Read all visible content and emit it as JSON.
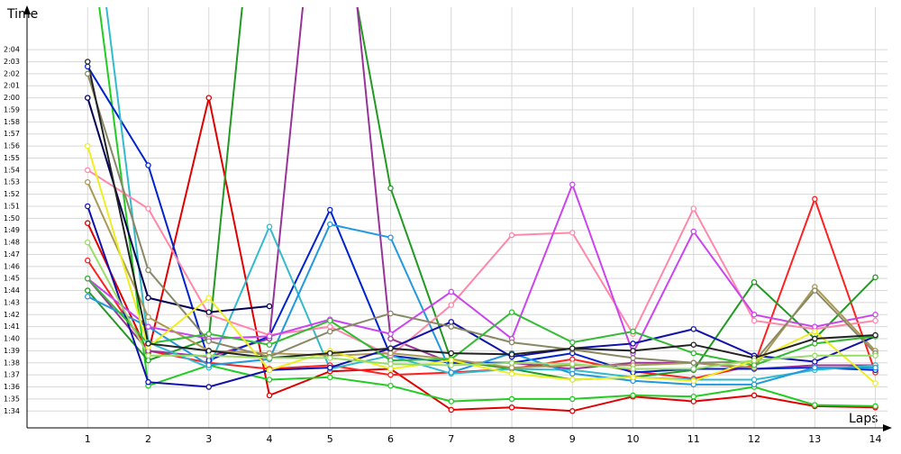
{
  "chart_data": {
    "type": "line",
    "ylabel": "Time",
    "xlabel": "Laps",
    "x": [
      1,
      2,
      3,
      4,
      5,
      6,
      7,
      8,
      9,
      10,
      11,
      12,
      13,
      14
    ],
    "xlim": [
      0,
      14.2
    ],
    "ylim": [
      92.6,
      127
    ],
    "xticks": [
      1,
      2,
      3,
      4,
      5,
      6,
      7,
      8,
      9,
      10,
      11,
      12,
      13,
      14
    ],
    "yticks": [
      {
        "value": 94,
        "label": "1:34"
      },
      {
        "value": 95,
        "label": "1:35"
      },
      {
        "value": 96,
        "label": "1:36"
      },
      {
        "value": 97,
        "label": "1:37"
      },
      {
        "value": 98,
        "label": "1:38"
      },
      {
        "value": 99,
        "label": "1:39"
      },
      {
        "value": 100,
        "label": "1:40"
      },
      {
        "value": 101,
        "label": "1:41"
      },
      {
        "value": 102,
        "label": "1:42"
      },
      {
        "value": 103,
        "label": "1:43"
      },
      {
        "value": 104,
        "label": "1:44"
      },
      {
        "value": 105,
        "label": "1:45"
      },
      {
        "value": 106,
        "label": "1:46"
      },
      {
        "value": 107,
        "label": "1:47"
      },
      {
        "value": 108,
        "label": "1:48"
      },
      {
        "value": 109,
        "label": "1:49"
      },
      {
        "value": 110,
        "label": "1:50"
      },
      {
        "value": 111,
        "label": "1:51"
      },
      {
        "value": 112,
        "label": "1:52"
      },
      {
        "value": 113,
        "label": "1:53"
      },
      {
        "value": 114,
        "label": "1:54"
      },
      {
        "value": 115,
        "label": "1:55"
      },
      {
        "value": 116,
        "label": "1:56"
      },
      {
        "value": 117,
        "label": "1:57"
      },
      {
        "value": 118,
        "label": "1:58"
      },
      {
        "value": 119,
        "label": "1:59"
      },
      {
        "value": 120,
        "label": "2:00"
      },
      {
        "value": 121,
        "label": "2:01"
      },
      {
        "value": 122,
        "label": "2:02"
      },
      {
        "value": 123,
        "label": "2:03"
      },
      {
        "value": 124,
        "label": "2:04"
      }
    ],
    "grid": true,
    "series": [
      {
        "color": "#e00000",
        "values": [
          109.6,
          98.8,
          120,
          95.3,
          97.3,
          97.5,
          94.1,
          94.3,
          94,
          95.2,
          94.8,
          95.3,
          94.4,
          94.3
        ]
      },
      {
        "color": "#ff2020",
        "values": [
          106.5,
          99,
          98,
          97.5,
          97.8,
          97,
          97.2,
          97.5,
          98.3,
          97.3,
          96.7,
          97.8,
          111.6,
          97.2
        ]
      },
      {
        "color": "#22cc22",
        "values": [
          135,
          96.1,
          97.8,
          96.6,
          96.8,
          96.1,
          94.8,
          95,
          95,
          95.3,
          95.2,
          96,
          94.5,
          94.4
        ]
      },
      {
        "color": "#229922",
        "values": [
          104,
          98.2,
          100,
          150,
          140,
          112.5,
          98.2,
          97.5,
          96.6,
          96.8,
          97.4,
          104.7,
          100,
          105.1
        ]
      },
      {
        "color": "#993399",
        "values": [
          105,
          99,
          98.5,
          100,
          150,
          100,
          98,
          98,
          97.5,
          98,
          98,
          97.5,
          97.8,
          97.8
        ]
      },
      {
        "color": "#0022cc",
        "values": [
          122.6,
          114.4,
          98.2,
          100.2,
          110.7,
          98.6,
          98,
          98,
          98.8,
          97.2,
          97.5,
          97.5,
          97.6,
          97.4
        ]
      },
      {
        "color": "#33bbcc",
        "values": [
          140,
          99.7,
          97.6,
          109.3,
          97.5,
          98.6,
          97.1,
          97.5,
          97.4,
          96.8,
          96.6,
          96.6,
          97.4,
          97.8
        ]
      },
      {
        "color": "#2299dd",
        "values": [
          103.5,
          101,
          97.8,
          98.3,
          109.5,
          108.4,
          97.2,
          98.8,
          97.1,
          96.5,
          96.2,
          96.2,
          97.6,
          97.6
        ]
      },
      {
        "color": "#ff88aa",
        "values": [
          114,
          110.8,
          102,
          100.3,
          101,
          98.6,
          102.8,
          108.6,
          108.8,
          100.4,
          110.8,
          101.5,
          100.8,
          101.5
        ]
      },
      {
        "color": "#cc44ee",
        "values": [
          105,
          101,
          100,
          100.2,
          101.6,
          100.4,
          103.9,
          100,
          112.8,
          98.8,
          108.9,
          102,
          101,
          102
        ]
      },
      {
        "color": "#aa9955",
        "values": [
          113,
          101.8,
          99,
          98.8,
          98.6,
          98.8,
          98.3,
          97.6,
          97.8,
          97.8,
          98,
          97.6,
          104.3,
          99
        ]
      },
      {
        "color": "#000055",
        "values": [
          120,
          103.4,
          102.2,
          102.7,
          null,
          null,
          null,
          null,
          null,
          null,
          null,
          null,
          null,
          null
        ]
      },
      {
        "color": "#1111aa",
        "values": [
          111,
          96.4,
          96,
          97.4,
          97.6,
          99.2,
          101.4,
          98.5,
          99.2,
          99.6,
          100.8,
          98.6,
          98.1,
          100.2
        ]
      },
      {
        "color": "#888866",
        "values": [
          122,
          105.7,
          99.8,
          98.5,
          100.6,
          102.1,
          101,
          99.7,
          99.1,
          98.4,
          98,
          98.1,
          104,
          98.8
        ]
      },
      {
        "color": "#33bb33",
        "values": [
          105,
          99.6,
          100.4,
          99.5,
          101.5,
          98.2,
          98.3,
          102.2,
          99.7,
          100.6,
          98.8,
          97.8,
          99.6,
          100.2
        ]
      },
      {
        "color": "#eeee22",
        "values": [
          116,
          99.3,
          103.4,
          97.4,
          99,
          97.5,
          98.2,
          97.1,
          96.6,
          96.8,
          96.5,
          98.2,
          100.6,
          96.3
        ]
      },
      {
        "color": "#222222",
        "values": [
          123,
          99.6,
          99,
          98.4,
          98.8,
          99.2,
          98.8,
          98.7,
          99.2,
          99,
          99.5,
          98.4,
          100,
          100.3
        ]
      },
      {
        "color": "#99dd66",
        "values": [
          108,
          98.6,
          98.6,
          98.4,
          98.4,
          97.9,
          97.8,
          98,
          97.9,
          97.5,
          97.5,
          98.2,
          98.6,
          98.6
        ]
      }
    ]
  }
}
